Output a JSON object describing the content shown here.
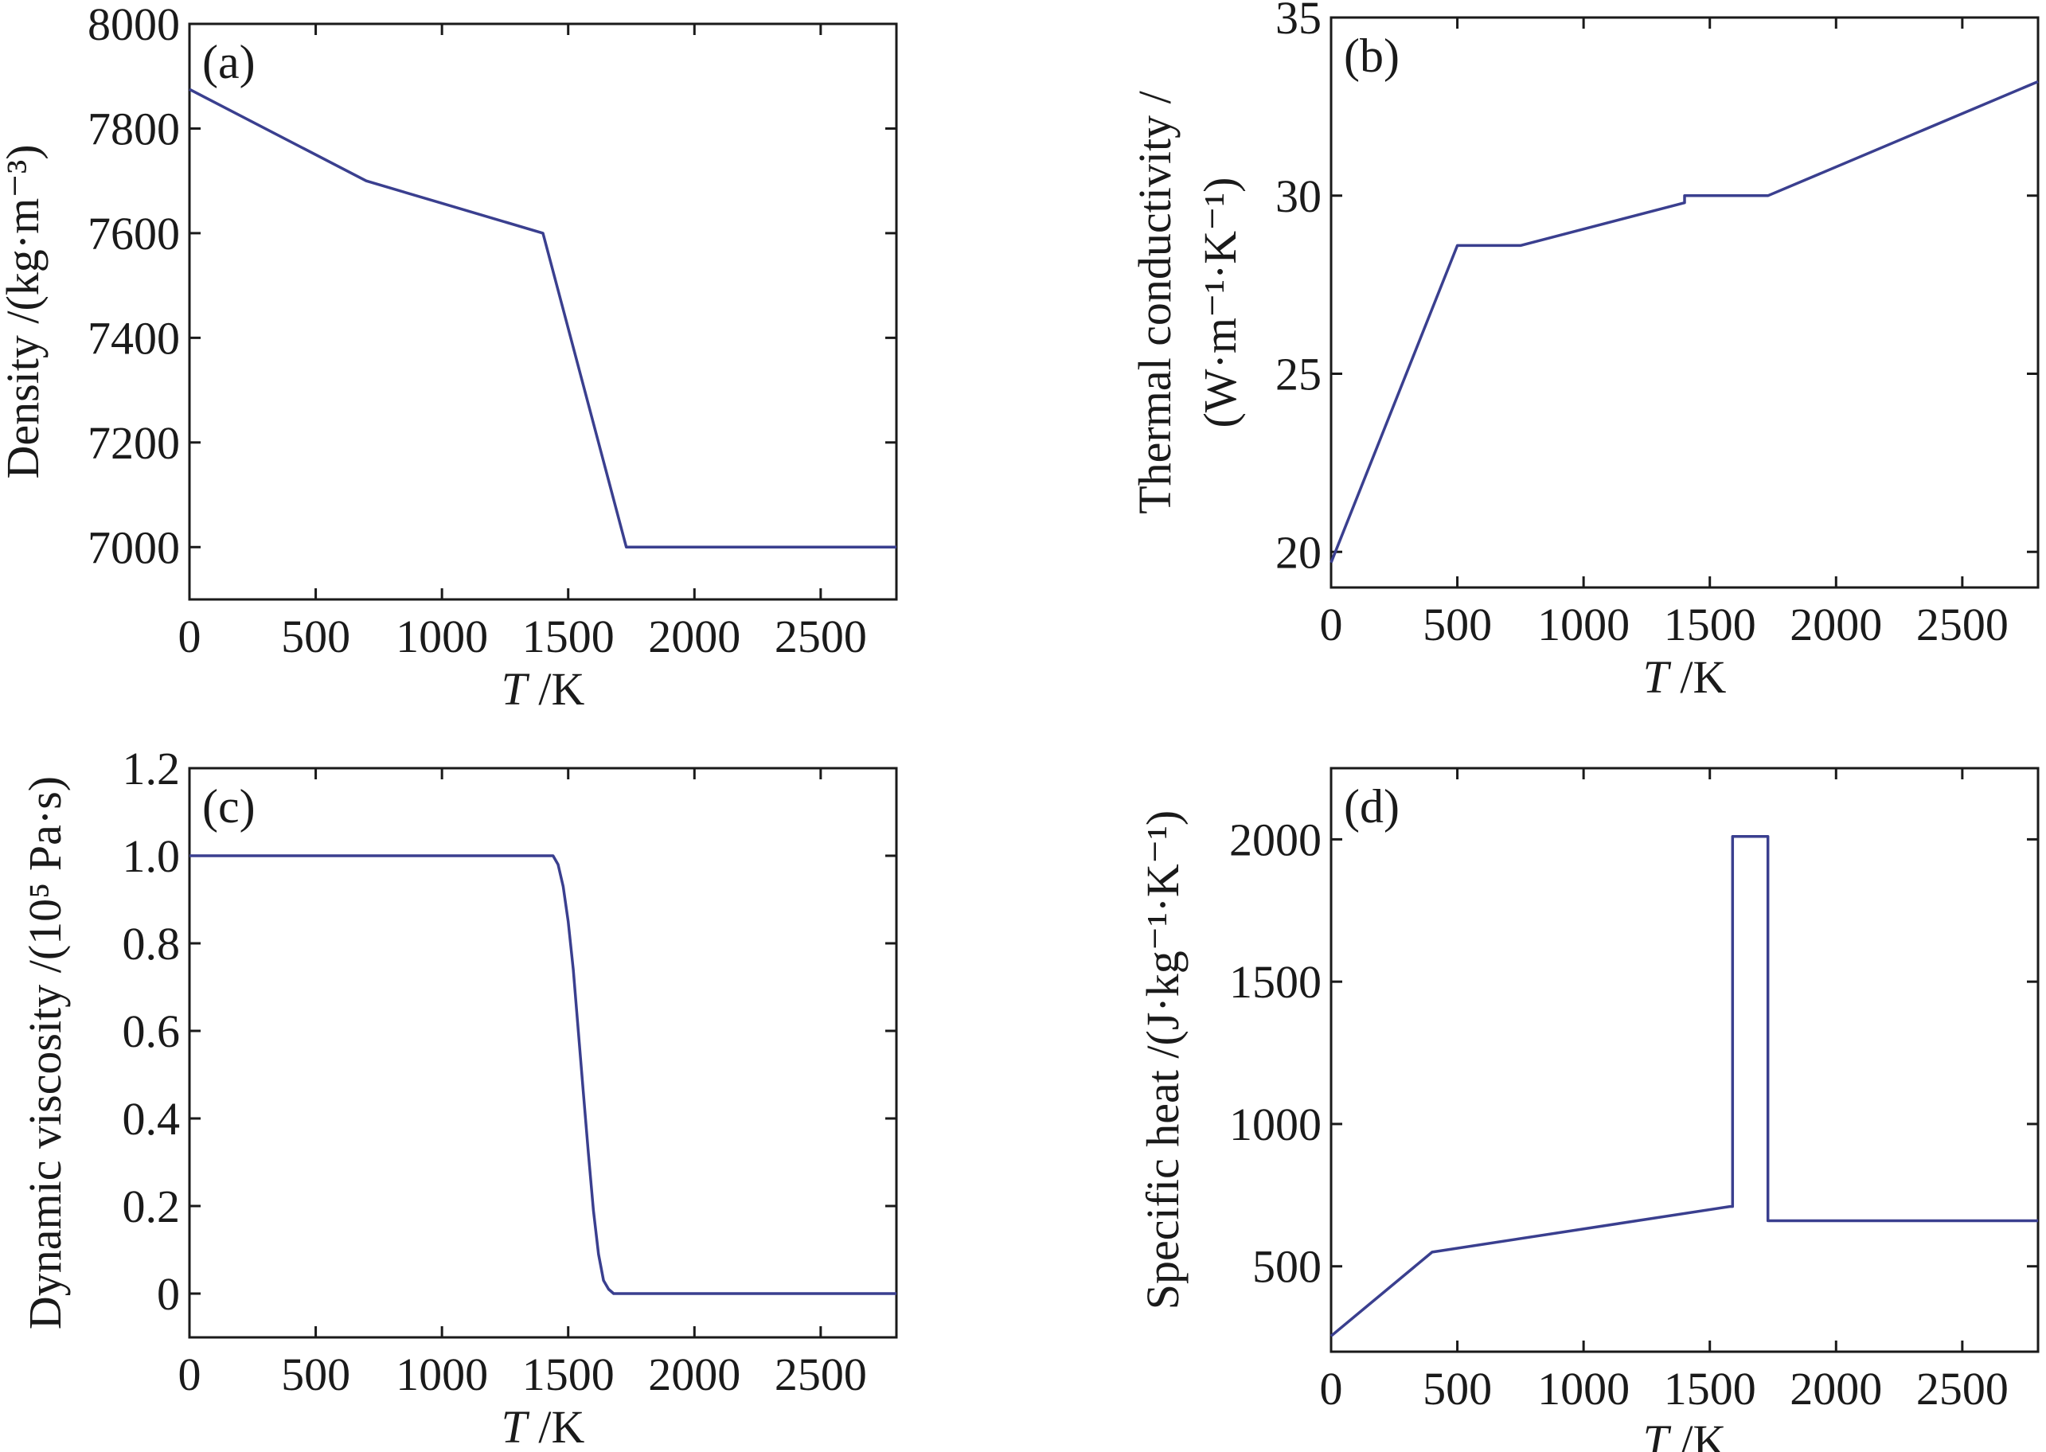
{
  "figure": {
    "line_color": "#3a3f8f"
  },
  "chart_data": [
    {
      "type": "line",
      "panel_label": "(a)",
      "xlabel": "T /K",
      "ylabel": "Density /(kg·m⁻³)",
      "xlim": [
        0,
        2800
      ],
      "ylim": [
        6900,
        8000
      ],
      "x_ticks": [
        0,
        500,
        1000,
        1500,
        2000,
        2500
      ],
      "x_tick_labels": [
        "0",
        "500",
        "1000",
        "1500",
        "2000",
        "2500"
      ],
      "y_ticks": [
        7000,
        7200,
        7400,
        7600,
        7800,
        8000
      ],
      "y_tick_labels": [
        "7000",
        "7200",
        "7400",
        "7600",
        "7800",
        "8000"
      ],
      "series": [
        {
          "x": [
            0,
            700,
            1400,
            1730,
            2800
          ],
          "y": [
            7875,
            7700,
            7600,
            7000,
            7000
          ]
        }
      ]
    },
    {
      "type": "line",
      "panel_label": "(b)",
      "xlabel": "T /K",
      "ylabel": "Thermal conductivity /",
      "ylabel2": "(W·m⁻¹·K⁻¹)",
      "xlim": [
        0,
        2800
      ],
      "ylim": [
        19,
        35
      ],
      "x_ticks": [
        0,
        500,
        1000,
        1500,
        2000,
        2500
      ],
      "x_tick_labels": [
        "0",
        "500",
        "1000",
        "1500",
        "2000",
        "2500"
      ],
      "y_ticks": [
        20,
        25,
        30,
        35
      ],
      "y_tick_labels": [
        "20",
        "25",
        "30",
        "35"
      ],
      "series": [
        {
          "x": [
            0,
            500,
            750,
            1400,
            1400,
            1730,
            2800
          ],
          "y": [
            19.7,
            28.6,
            28.6,
            29.8,
            30.0,
            30.0,
            33.2
          ]
        }
      ]
    },
    {
      "type": "line",
      "panel_label": "(c)",
      "xlabel": "T /K",
      "ylabel": "Dynamic viscosity /(10⁵ Pa·s)",
      "xlim": [
        0,
        2800
      ],
      "ylim": [
        -0.1,
        1.2
      ],
      "x_ticks": [
        0,
        500,
        1000,
        1500,
        2000,
        2500
      ],
      "x_tick_labels": [
        "0",
        "500",
        "1000",
        "1500",
        "2000",
        "2500"
      ],
      "y_ticks": [
        0,
        0.2,
        0.4,
        0.6,
        0.8,
        1.0,
        1.2
      ],
      "y_tick_labels": [
        "0",
        "0.2",
        "0.4",
        "0.6",
        "0.8",
        "1.0",
        "1.2"
      ],
      "series": [
        {
          "x": [
            0,
            1400,
            1440,
            1460,
            1480,
            1500,
            1520,
            1540,
            1560,
            1580,
            1600,
            1620,
            1640,
            1660,
            1680,
            1700,
            2800
          ],
          "y": [
            1.0,
            1.0,
            1.0,
            0.98,
            0.93,
            0.85,
            0.74,
            0.6,
            0.46,
            0.32,
            0.19,
            0.09,
            0.03,
            0.01,
            0.0,
            0.0,
            0.0
          ]
        }
      ]
    },
    {
      "type": "line",
      "panel_label": "(d)",
      "xlabel": "T /K",
      "ylabel": "Specific heat /(J·kg⁻¹·K⁻¹)",
      "xlim": [
        0,
        2800
      ],
      "ylim": [
        200,
        2250
      ],
      "x_ticks": [
        0,
        500,
        1000,
        1500,
        2000,
        2500
      ],
      "x_tick_labels": [
        "0",
        "500",
        "1000",
        "1500",
        "2000",
        "2500"
      ],
      "y_ticks": [
        500,
        1000,
        1500,
        2000
      ],
      "y_tick_labels": [
        "500",
        "1000",
        "1500",
        "2000"
      ],
      "series": [
        {
          "x": [
            0,
            400,
            1580,
            1590,
            1590,
            1730,
            1730,
            2800
          ],
          "y": [
            255,
            550,
            710,
            710,
            2010,
            2010,
            660,
            660
          ]
        }
      ]
    }
  ]
}
